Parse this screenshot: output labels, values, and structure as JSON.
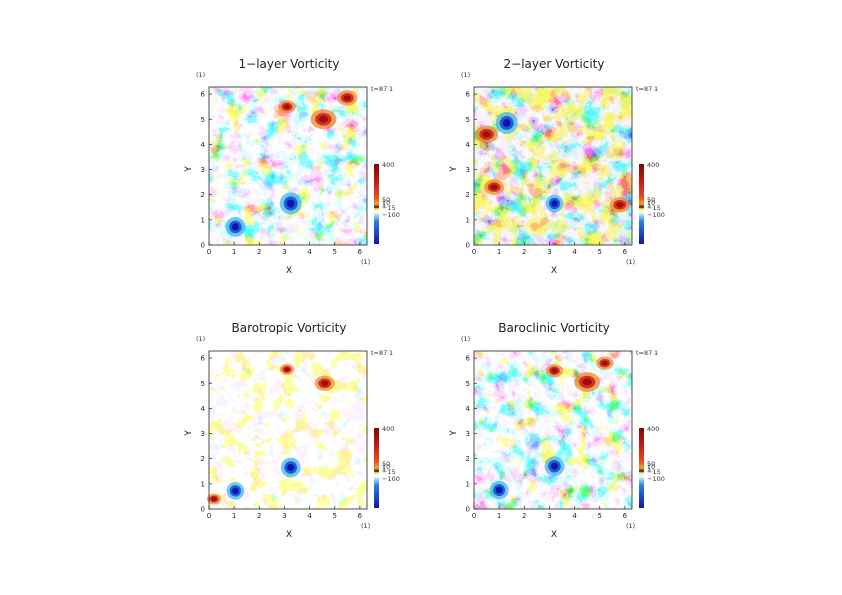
{
  "colors": {
    "deep_blue": "#1414a8",
    "blue": "#1a5fd6",
    "light_blue": "#43b6f0",
    "pale_cyan": "#bfefff",
    "white": "#ffffff",
    "yellow": "#f7e262",
    "orange": "#f08a2a",
    "red": "#d7301f",
    "dark_red": "#9a1010"
  },
  "chart_data": [
    {
      "type": "heatmap",
      "title": "1−layer Vorticity",
      "xlabel": "X",
      "ylabel": "Y",
      "x_unit": "(1)",
      "y_unit": "(1)",
      "time_label": "t=87",
      "time_unit": "1",
      "xlim": [
        0,
        6.283
      ],
      "ylim": [
        0,
        6.283
      ],
      "xticks": [
        "0",
        "1",
        "2",
        "3",
        "4",
        "5",
        "6"
      ],
      "yticks": [
        "0",
        "1",
        "2",
        "3",
        "4",
        "5",
        "6"
      ],
      "colorbar_labels": [
        "400",
        "50",
        "10",
        "1",
        "−15",
        "−100"
      ],
      "colorbar_values": [
        400,
        50,
        10,
        1,
        -15,
        -100
      ],
      "grid": false,
      "features": [
        {
          "x": 3.25,
          "y": 1.65,
          "sign": -1,
          "strength": 1.0
        },
        {
          "x": 1.05,
          "y": 0.72,
          "sign": -1,
          "strength": 0.9
        },
        {
          "x": 4.55,
          "y": 5.0,
          "sign": 1,
          "strength": 0.9
        },
        {
          "x": 5.5,
          "y": 5.85,
          "sign": 1,
          "strength": 0.7
        },
        {
          "x": 3.1,
          "y": 5.5,
          "sign": 1,
          "strength": 0.6
        }
      ]
    },
    {
      "type": "heatmap",
      "title": "2−layer Vorticity",
      "xlabel": "X",
      "ylabel": "Y",
      "x_unit": "(1)",
      "y_unit": "(1)",
      "time_label": "t=87",
      "time_unit": "1",
      "xlim": [
        0,
        6.283
      ],
      "ylim": [
        0,
        6.283
      ],
      "xticks": [
        "0",
        "1",
        "2",
        "3",
        "4",
        "5",
        "6"
      ],
      "yticks": [
        "0",
        "1",
        "2",
        "3",
        "4",
        "5",
        "6"
      ],
      "colorbar_labels": [
        "400",
        "50",
        "10",
        "1",
        "−15",
        "−100"
      ],
      "colorbar_values": [
        400,
        50,
        10,
        1,
        -15,
        -100
      ],
      "grid": false,
      "features": [
        {
          "x": 3.2,
          "y": 1.65,
          "sign": -1,
          "strength": 0.8
        },
        {
          "x": 1.3,
          "y": 4.85,
          "sign": -1,
          "strength": 1.0
        },
        {
          "x": 0.5,
          "y": 4.4,
          "sign": 1,
          "strength": 0.8
        },
        {
          "x": 0.8,
          "y": 2.3,
          "sign": 1,
          "strength": 0.7
        },
        {
          "x": 5.8,
          "y": 1.6,
          "sign": 1,
          "strength": 0.7
        }
      ]
    },
    {
      "type": "heatmap",
      "title": "Barotropic Vorticity",
      "xlabel": "X",
      "ylabel": "Y",
      "x_unit": "(1)",
      "y_unit": "(1)",
      "time_label": "t=87",
      "time_unit": "1",
      "xlim": [
        0,
        6.283
      ],
      "ylim": [
        0,
        6.283
      ],
      "xticks": [
        "0",
        "1",
        "2",
        "3",
        "4",
        "5",
        "6"
      ],
      "yticks": [
        "0",
        "1",
        "2",
        "3",
        "4",
        "5",
        "6"
      ],
      "colorbar_labels": [
        "400",
        "50",
        "10",
        "1",
        "−15",
        "−100"
      ],
      "colorbar_values": [
        400,
        50,
        10,
        1,
        -15,
        -100
      ],
      "grid": false,
      "features": [
        {
          "x": 3.25,
          "y": 1.65,
          "sign": -1,
          "strength": 0.9
        },
        {
          "x": 1.05,
          "y": 0.72,
          "sign": -1,
          "strength": 0.8
        },
        {
          "x": 4.6,
          "y": 5.0,
          "sign": 1,
          "strength": 0.7
        },
        {
          "x": 3.1,
          "y": 5.55,
          "sign": 1,
          "strength": 0.5
        },
        {
          "x": 0.2,
          "y": 0.4,
          "sign": 1,
          "strength": 0.5
        }
      ]
    },
    {
      "type": "heatmap",
      "title": "Baroclinic Vorticity",
      "xlabel": "X",
      "ylabel": "Y",
      "x_unit": "(1)",
      "y_unit": "(1)",
      "time_label": "t=87",
      "time_unit": "1",
      "xlim": [
        0,
        6.283
      ],
      "ylim": [
        0,
        6.283
      ],
      "xticks": [
        "0",
        "1",
        "2",
        "3",
        "4",
        "5",
        "6"
      ],
      "yticks": [
        "0",
        "1",
        "2",
        "3",
        "4",
        "5",
        "6"
      ],
      "colorbar_labels": [
        "400",
        "50",
        "10",
        "1",
        "−15",
        "−100"
      ],
      "colorbar_values": [
        400,
        50,
        10,
        1,
        -15,
        -100
      ],
      "grid": false,
      "features": [
        {
          "x": 3.2,
          "y": 1.7,
          "sign": -1,
          "strength": 0.9
        },
        {
          "x": 1.0,
          "y": 0.75,
          "sign": -1,
          "strength": 0.85
        },
        {
          "x": 4.5,
          "y": 5.05,
          "sign": 1,
          "strength": 0.9
        },
        {
          "x": 5.2,
          "y": 5.8,
          "sign": 1,
          "strength": 0.6
        },
        {
          "x": 3.2,
          "y": 5.5,
          "sign": 1,
          "strength": 0.6
        }
      ]
    }
  ]
}
